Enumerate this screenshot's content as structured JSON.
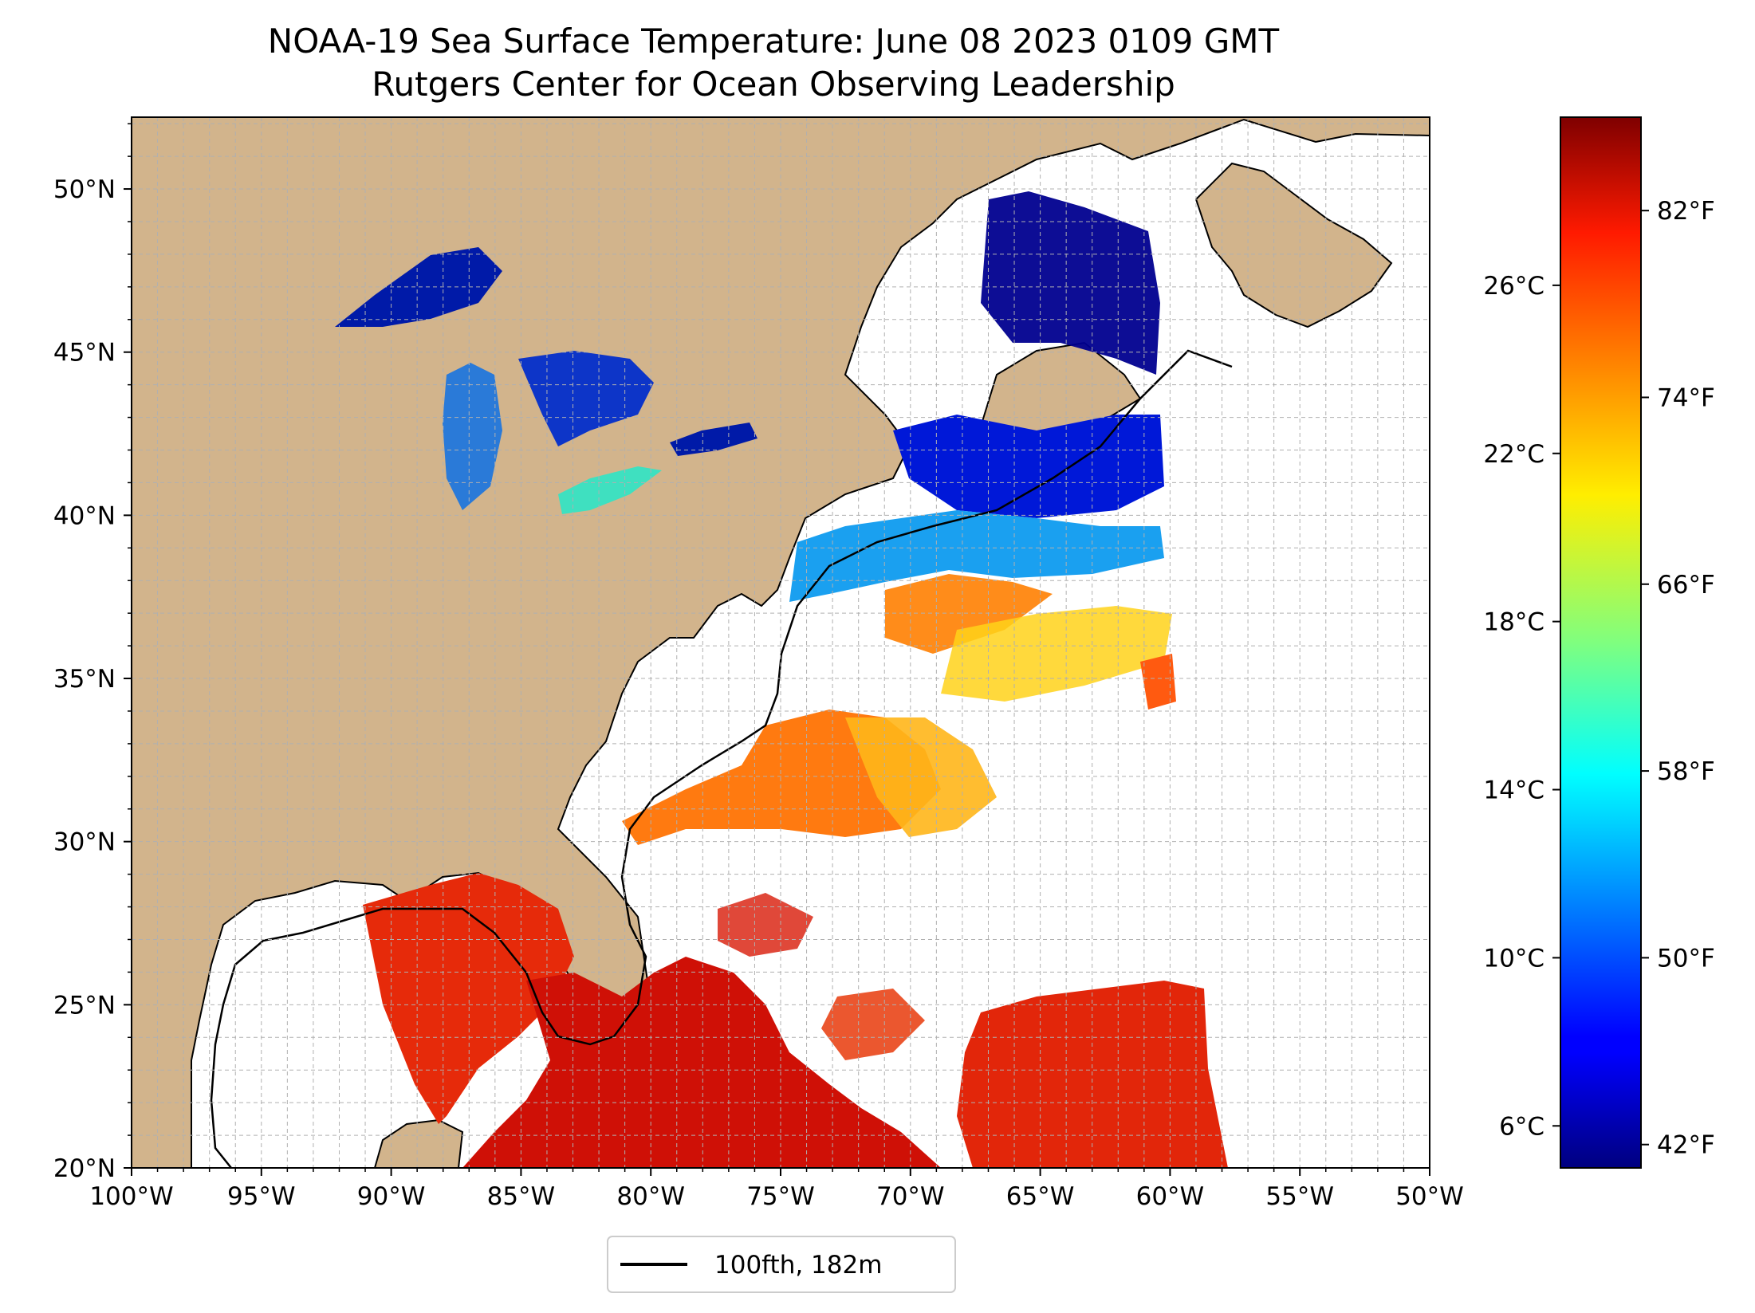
{
  "title": {
    "line1": "NOAA-19 Sea Surface Temperature: June 08 2023 0109 GMT",
    "line2": "Rutgers Center for Ocean Observing Leadership"
  },
  "map": {
    "lon_range": [
      -100,
      -50
    ],
    "lat_range": [
      20,
      52.2
    ],
    "lon_ticks": [
      {
        "value": -100,
        "label": "100°W"
      },
      {
        "value": -95,
        "label": "95°W"
      },
      {
        "value": -90,
        "label": "90°W"
      },
      {
        "value": -85,
        "label": "85°W"
      },
      {
        "value": -80,
        "label": "80°W"
      },
      {
        "value": -75,
        "label": "75°W"
      },
      {
        "value": -70,
        "label": "70°W"
      },
      {
        "value": -65,
        "label": "65°W"
      },
      {
        "value": -60,
        "label": "60°W"
      },
      {
        "value": -55,
        "label": "55°W"
      },
      {
        "value": -50,
        "label": "50°W"
      }
    ],
    "lat_ticks": [
      {
        "value": 20,
        "label": "20°N"
      },
      {
        "value": 25,
        "label": "25°N"
      },
      {
        "value": 30,
        "label": "30°N"
      },
      {
        "value": 35,
        "label": "35°N"
      },
      {
        "value": 40,
        "label": "40°N"
      },
      {
        "value": 45,
        "label": "45°N"
      },
      {
        "value": 50,
        "label": "50°N"
      }
    ],
    "grid": "dashed 1-degree gridlines",
    "colors": {
      "land": "#d2b48c",
      "lakes": "#98b4e0",
      "ocean_no_data": "#ffffff",
      "coastline": "#000000"
    }
  },
  "legend": {
    "entries": [
      {
        "label": "100fth, 182m",
        "color": "#000000"
      }
    ],
    "placement": "bottom-center below map"
  },
  "colorbar": {
    "colormap": "jet",
    "range_c": [
      5,
      30
    ],
    "celsius_ticks": [
      {
        "value": 6,
        "label": "6°C"
      },
      {
        "value": 10,
        "label": "10°C"
      },
      {
        "value": 14,
        "label": "14°C"
      },
      {
        "value": 18,
        "label": "18°C"
      },
      {
        "value": 22,
        "label": "22°C"
      },
      {
        "value": 26,
        "label": "26°C"
      }
    ],
    "fahrenheit_ticks": [
      {
        "value": 42,
        "label": "42°F"
      },
      {
        "value": 50,
        "label": "50°F"
      },
      {
        "value": 58,
        "label": "58°F"
      },
      {
        "value": 66,
        "label": "66°F"
      },
      {
        "value": 74,
        "label": "74°F"
      },
      {
        "value": 82,
        "label": "82°F"
      }
    ]
  }
}
